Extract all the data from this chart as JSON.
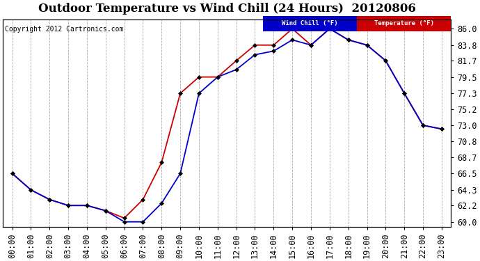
{
  "title": "Outdoor Temperature vs Wind Chill (24 Hours)  20120806",
  "copyright": "Copyright 2012 Cartronics.com",
  "legend_wc": "Wind Chill (°F)",
  "legend_temp": "Temperature (°F)",
  "hours": [
    0,
    1,
    2,
    3,
    4,
    5,
    6,
    7,
    8,
    9,
    10,
    11,
    12,
    13,
    14,
    15,
    16,
    17,
    18,
    19,
    20,
    21,
    22,
    23
  ],
  "xlabels": [
    "00:00",
    "01:00",
    "02:00",
    "03:00",
    "04:00",
    "05:00",
    "06:00",
    "07:00",
    "08:00",
    "09:00",
    "10:00",
    "11:00",
    "12:00",
    "13:00",
    "14:00",
    "15:00",
    "16:00",
    "17:00",
    "18:00",
    "19:00",
    "20:00",
    "21:00",
    "22:00",
    "23:00"
  ],
  "temperature": [
    66.5,
    64.3,
    63.0,
    62.2,
    62.2,
    61.5,
    60.5,
    63.0,
    68.0,
    77.3,
    79.5,
    79.5,
    81.7,
    83.8,
    83.8,
    86.0,
    83.8,
    86.0,
    84.5,
    83.8,
    81.7,
    77.3,
    73.0,
    72.5
  ],
  "wind_chill": [
    66.5,
    64.3,
    63.0,
    62.2,
    62.2,
    61.5,
    60.0,
    60.0,
    62.5,
    66.5,
    77.3,
    79.5,
    80.5,
    82.5,
    83.0,
    84.5,
    83.8,
    86.0,
    84.5,
    83.8,
    81.7,
    77.3,
    73.0,
    72.5
  ],
  "temp_color": "#cc0000",
  "wc_color": "#0000cc",
  "yticks": [
    60.0,
    62.2,
    64.3,
    66.5,
    68.7,
    70.8,
    73.0,
    75.2,
    77.3,
    79.5,
    81.7,
    83.8,
    86.0
  ],
  "ylim": [
    59.3,
    87.2
  ],
  "bg_color": "#ffffff",
  "plot_bg": "#d8d8d8",
  "grid_color": "#aaaaaa",
  "title_fontsize": 12,
  "tick_fontsize": 8.5
}
